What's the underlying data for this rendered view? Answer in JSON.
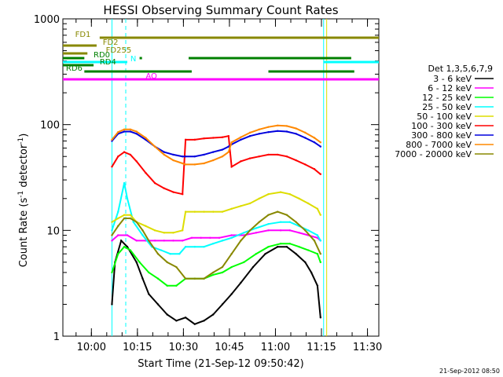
{
  "chart_data": {
    "type": "line",
    "title": "HESSI Observing Summary Count Rates",
    "xlabel": "Start Time (21-Sep-12 09:50:42)",
    "ylabel_main": "Count Rate (s",
    "ylabel_sup": "-1",
    "ylabel_mid": " detector",
    "ylabel_end": ")",
    "yscale": "log",
    "ylim": [
      1,
      1000
    ],
    "xlim_minutes": [
      0,
      103
    ],
    "x_ticks": [
      {
        "label": "10:00",
        "minutes": 9.3
      },
      {
        "label": "10:15",
        "minutes": 24.3
      },
      {
        "label": "10:30",
        "minutes": 39.3
      },
      {
        "label": "10:45",
        "minutes": 54.3
      },
      {
        "label": "11:00",
        "minutes": 69.3
      },
      {
        "label": "11:15",
        "minutes": 84.3
      },
      {
        "label": "11:30",
        "minutes": 99.3
      }
    ],
    "y_ticks": [
      {
        "label": "1",
        "value": 1
      },
      {
        "label": "10",
        "value": 10
      },
      {
        "label": "100",
        "value": 100
      },
      {
        "label": "1000",
        "value": 1000
      }
    ],
    "legend_title": "Det 1,3,5,6,7,9",
    "legend_position": "right",
    "series": [
      {
        "name": "3 - 6 keV",
        "color": "#000000",
        "points": [
          [
            16,
            2
          ],
          [
            17,
            5
          ],
          [
            19,
            8
          ],
          [
            21,
            7
          ],
          [
            24,
            5
          ],
          [
            26,
            3.5
          ],
          [
            28,
            2.5
          ],
          [
            31,
            2
          ],
          [
            34,
            1.6
          ],
          [
            37,
            1.4
          ],
          [
            40,
            1.5
          ],
          [
            43,
            1.3
          ],
          [
            46,
            1.4
          ],
          [
            49,
            1.6
          ],
          [
            52,
            2
          ],
          [
            55,
            2.5
          ],
          [
            58,
            3.2
          ],
          [
            62,
            4.5
          ],
          [
            66,
            6
          ],
          [
            70,
            7
          ],
          [
            73,
            7
          ],
          [
            76,
            6
          ],
          [
            79,
            5
          ],
          [
            81,
            4
          ],
          [
            83,
            3
          ],
          [
            84,
            1.5
          ]
        ]
      },
      {
        "name": "6 - 12 keV",
        "color": "#ff00ff",
        "points": [
          [
            16,
            8
          ],
          [
            18,
            9
          ],
          [
            21,
            9
          ],
          [
            24,
            8
          ],
          [
            27,
            8
          ],
          [
            30,
            8
          ],
          [
            33,
            8
          ],
          [
            36,
            8
          ],
          [
            39,
            8
          ],
          [
            42,
            8.5
          ],
          [
            45,
            8.5
          ],
          [
            48,
            8.5
          ],
          [
            51,
            8.5
          ],
          [
            55,
            9
          ],
          [
            59,
            9
          ],
          [
            63,
            9.5
          ],
          [
            67,
            10
          ],
          [
            71,
            10
          ],
          [
            74,
            10
          ],
          [
            77,
            9.5
          ],
          [
            80,
            9
          ],
          [
            83,
            8.5
          ],
          [
            84,
            8
          ]
        ]
      },
      {
        "name": "12 - 25 keV",
        "color": "#00ff00",
        "points": [
          [
            16,
            4
          ],
          [
            18,
            6
          ],
          [
            20,
            7
          ],
          [
            22,
            6.5
          ],
          [
            25,
            5
          ],
          [
            28,
            4
          ],
          [
            31,
            3.5
          ],
          [
            34,
            3
          ],
          [
            37,
            3
          ],
          [
            40,
            3.5
          ],
          [
            43,
            3.5
          ],
          [
            46,
            3.5
          ],
          [
            49,
            3.8
          ],
          [
            52,
            4
          ],
          [
            55,
            4.5
          ],
          [
            59,
            5
          ],
          [
            63,
            6
          ],
          [
            67,
            7
          ],
          [
            71,
            7.5
          ],
          [
            74,
            7.5
          ],
          [
            77,
            7
          ],
          [
            80,
            6.5
          ],
          [
            83,
            6
          ],
          [
            84,
            5
          ]
        ]
      },
      {
        "name": "25 - 50 keV",
        "color": "#00ffff",
        "points": [
          [
            16,
            10
          ],
          [
            18,
            15
          ],
          [
            20,
            28
          ],
          [
            21,
            20
          ],
          [
            23,
            12
          ],
          [
            26,
            9
          ],
          [
            29,
            7
          ],
          [
            32,
            6.5
          ],
          [
            35,
            6
          ],
          [
            38,
            6
          ],
          [
            40,
            7
          ],
          [
            43,
            7
          ],
          [
            46,
            7
          ],
          [
            49,
            7.5
          ],
          [
            52,
            8
          ],
          [
            55,
            8.5
          ],
          [
            59,
            9.5
          ],
          [
            63,
            10.5
          ],
          [
            67,
            11.5
          ],
          [
            71,
            12
          ],
          [
            74,
            12
          ],
          [
            77,
            11
          ],
          [
            80,
            10
          ],
          [
            83,
            9
          ],
          [
            84,
            8
          ]
        ]
      },
      {
        "name": "50 - 100 keV",
        "color": "#dddd00",
        "points": [
          [
            16,
            12
          ],
          [
            18,
            13
          ],
          [
            20,
            14
          ],
          [
            22,
            14
          ],
          [
            24,
            12
          ],
          [
            27,
            11
          ],
          [
            30,
            10
          ],
          [
            33,
            9.5
          ],
          [
            36,
            9.5
          ],
          [
            39,
            10
          ],
          [
            40,
            15
          ],
          [
            43,
            15
          ],
          [
            46,
            15
          ],
          [
            49,
            15
          ],
          [
            52,
            15
          ],
          [
            55,
            16
          ],
          [
            58,
            17
          ],
          [
            61,
            18
          ],
          [
            64,
            20
          ],
          [
            67,
            22
          ],
          [
            71,
            23
          ],
          [
            74,
            22
          ],
          [
            77,
            20
          ],
          [
            80,
            18
          ],
          [
            83,
            16
          ],
          [
            84,
            14
          ]
        ]
      },
      {
        "name": "100 - 300 keV",
        "color": "#ff0000",
        "points": [
          [
            16,
            40
          ],
          [
            18,
            50
          ],
          [
            20,
            55
          ],
          [
            22,
            52
          ],
          [
            24,
            45
          ],
          [
            27,
            35
          ],
          [
            30,
            28
          ],
          [
            33,
            25
          ],
          [
            36,
            23
          ],
          [
            39,
            22
          ],
          [
            40,
            72
          ],
          [
            43,
            72
          ],
          [
            46,
            74
          ],
          [
            49,
            75
          ],
          [
            52,
            76
          ],
          [
            54,
            78
          ],
          [
            55,
            40
          ],
          [
            58,
            45
          ],
          [
            61,
            48
          ],
          [
            64,
            50
          ],
          [
            67,
            52
          ],
          [
            70,
            52
          ],
          [
            73,
            50
          ],
          [
            76,
            46
          ],
          [
            79,
            42
          ],
          [
            82,
            38
          ],
          [
            84,
            34
          ]
        ]
      },
      {
        "name": "300 - 800 keV",
        "color": "#0000dd",
        "points": [
          [
            16,
            70
          ],
          [
            18,
            82
          ],
          [
            20,
            86
          ],
          [
            22,
            86
          ],
          [
            24,
            82
          ],
          [
            27,
            72
          ],
          [
            30,
            62
          ],
          [
            33,
            55
          ],
          [
            36,
            52
          ],
          [
            39,
            50
          ],
          [
            40,
            50
          ],
          [
            43,
            50
          ],
          [
            46,
            52
          ],
          [
            49,
            55
          ],
          [
            52,
            58
          ],
          [
            54,
            62
          ],
          [
            55,
            65
          ],
          [
            58,
            72
          ],
          [
            61,
            78
          ],
          [
            64,
            82
          ],
          [
            67,
            85
          ],
          [
            70,
            87
          ],
          [
            73,
            86
          ],
          [
            76,
            82
          ],
          [
            79,
            75
          ],
          [
            82,
            68
          ],
          [
            84,
            62
          ]
        ]
      },
      {
        "name": "800 - 7000 keV",
        "color": "#ff8800",
        "points": [
          [
            16,
            72
          ],
          [
            18,
            85
          ],
          [
            20,
            90
          ],
          [
            22,
            90
          ],
          [
            24,
            86
          ],
          [
            27,
            75
          ],
          [
            30,
            62
          ],
          [
            33,
            52
          ],
          [
            36,
            46
          ],
          [
            39,
            43
          ],
          [
            40,
            42
          ],
          [
            43,
            42
          ],
          [
            46,
            43
          ],
          [
            49,
            46
          ],
          [
            52,
            50
          ],
          [
            54,
            55
          ],
          [
            55,
            68
          ],
          [
            58,
            76
          ],
          [
            61,
            84
          ],
          [
            64,
            90
          ],
          [
            67,
            95
          ],
          [
            70,
            98
          ],
          [
            73,
            97
          ],
          [
            76,
            92
          ],
          [
            79,
            84
          ],
          [
            82,
            75
          ],
          [
            84,
            68
          ]
        ]
      },
      {
        "name": "7000 - 20000 keV",
        "color": "#888800",
        "points": [
          [
            16,
            9
          ],
          [
            18,
            11
          ],
          [
            20,
            13
          ],
          [
            22,
            13
          ],
          [
            24,
            12
          ],
          [
            26,
            10
          ],
          [
            28,
            8
          ],
          [
            31,
            6
          ],
          [
            34,
            5
          ],
          [
            37,
            4.5
          ],
          [
            40,
            3.5
          ],
          [
            43,
            3.5
          ],
          [
            46,
            3.5
          ],
          [
            49,
            4
          ],
          [
            52,
            4.5
          ],
          [
            55,
            6
          ],
          [
            58,
            8
          ],
          [
            61,
            10
          ],
          [
            64,
            12
          ],
          [
            67,
            14
          ],
          [
            70,
            15
          ],
          [
            73,
            14
          ],
          [
            76,
            12
          ],
          [
            79,
            10
          ],
          [
            82,
            8
          ],
          [
            84,
            6
          ]
        ]
      }
    ],
    "flags": [
      {
        "name": "N",
        "color": "#00ffff",
        "y": 79,
        "label_x": 22,
        "segments": [
          [
            0,
            21
          ],
          [
            85,
            103
          ]
        ]
      },
      {
        "name": "FD1",
        "color": "#888800",
        "y": 48,
        "label_x": 4,
        "segments": [
          [
            12,
            103
          ]
        ]
      },
      {
        "name": "FD2",
        "color": "#888800",
        "y": 58,
        "label_x": 13,
        "segments": [
          [
            0,
            11
          ]
        ]
      },
      {
        "name": "FD255",
        "color": "#888800",
        "y": 68,
        "label_x": 14,
        "segments": [
          [
            0,
            8
          ]
        ]
      },
      {
        "name": "RD0",
        "color": "#008000",
        "y": 74,
        "label_x": 10,
        "segments": [
          [
            0,
            7
          ],
          [
            25,
            25.8
          ],
          [
            41,
            94
          ],
          [
            104,
            113
          ]
        ]
      },
      {
        "name": "RD4",
        "color": "#008000",
        "y": 83,
        "label_x": 12,
        "segments": [
          [
            0,
            10
          ]
        ]
      },
      {
        "name": "RD6",
        "color": "#008000",
        "y": 91,
        "label_x": 1,
        "segments": [
          [
            7,
            42
          ],
          [
            67,
            95
          ]
        ]
      },
      {
        "name": "AO",
        "color": "#ff00ff",
        "y": 101,
        "label_x": 27,
        "segments": [
          [
            0,
            103
          ]
        ]
      }
    ],
    "vlines": [
      {
        "minutes": 16,
        "color": "#00ffff",
        "dash": false
      },
      {
        "minutes": 20.5,
        "color": "#00ffff",
        "dash": true
      },
      {
        "minutes": 85,
        "color": "#00ffff",
        "dash": false
      },
      {
        "minutes": 86,
        "color": "#dddd00",
        "dash": false
      },
      {
        "minutes": 105,
        "color": "#00ffff",
        "dash": true
      }
    ]
  },
  "footer": {
    "timestamp": "21-Sep-2012 08:50"
  }
}
